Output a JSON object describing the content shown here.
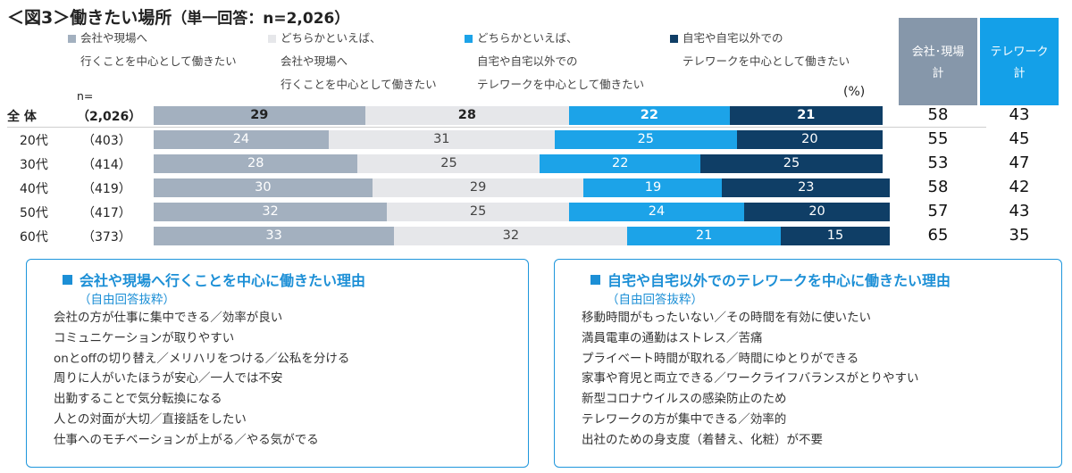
{
  "header": {
    "title": "＜図3＞働きたい場所",
    "subtitle": "（単一回答：n=2,026）"
  },
  "legend": [
    {
      "line1": "会社や現場へ",
      "line2": "行くことを中心として働きたい",
      "line3": "",
      "color": "#a3b0bf"
    },
    {
      "line1": "どちらかといえば、",
      "line2": "会社や現場へ",
      "line3": "行くことを中心として働きたい",
      "color": "#e6e7ea"
    },
    {
      "line1": "どちらかといえば、",
      "line2": "自宅や自宅以外での",
      "line3": "テレワークを中心として働きたい",
      "color": "#1ca3e8"
    },
    {
      "line1": "自宅や自宅以外での",
      "line2": "テレワークを中心として働きたい",
      "line3": "",
      "color": "#0f3e66"
    }
  ],
  "totals_header": [
    {
      "line1": "会社･現場",
      "line2": "計"
    },
    {
      "line1": "テレワーク",
      "line2": "計"
    }
  ],
  "n_label": "n=",
  "unit_label": "(%)",
  "chart_data": {
    "type": "bar",
    "stacked": true,
    "orientation": "horizontal",
    "categories": [
      "全 体",
      "20代",
      "30代",
      "40代",
      "50代",
      "60代"
    ],
    "sample_sizes": [
      "（2,026）",
      "（403）",
      "（414）",
      "（419）",
      "（417）",
      "（373）"
    ],
    "series": [
      {
        "name": "会社や現場へ行くことを中心として働きたい",
        "color": "#a3b0bf",
        "values": [
          29,
          24,
          28,
          30,
          32,
          33
        ]
      },
      {
        "name": "どちらかといえば、会社や現場へ行くことを中心として働きたい",
        "color": "#e6e7ea",
        "values": [
          28,
          31,
          25,
          29,
          25,
          32
        ]
      },
      {
        "name": "どちらかといえば、自宅や自宅以外でのテレワークを中心として働きたい",
        "color": "#1ca3e8",
        "values": [
          22,
          25,
          22,
          19,
          24,
          21
        ]
      },
      {
        "name": "自宅や自宅以外でのテレワークを中心として働きたい",
        "color": "#0f3e66",
        "values": [
          21,
          20,
          25,
          23,
          20,
          15
        ]
      }
    ],
    "totals": {
      "office": [
        58,
        55,
        53,
        58,
        57,
        65
      ],
      "telework": [
        43,
        45,
        47,
        42,
        43,
        35
      ]
    },
    "xlim": [
      0,
      100
    ],
    "unit": "%"
  },
  "reasons_office": {
    "title": "会社や現場へ行くことを中心に働きたい理由",
    "note": "（自由回答抜粋）",
    "items": [
      "会社の方が仕事に集中できる／効率が良い",
      "コミュニケーションが取りやすい",
      "onとoffの切り替え／メリハリをつける／公私を分ける",
      "周りに人がいたほうが安心／一人では不安",
      "出勤することで気分転換になる",
      "人との対面が大切／直接話をしたい",
      "仕事へのモチベーションが上がる／やる気がでる"
    ]
  },
  "reasons_telework": {
    "title": "自宅や自宅以外でのテレワークを中心に働きたい理由",
    "note": "（自由回答抜粋）",
    "items": [
      "移動時間がもったいない／その時間を有効に使いたい",
      "満員電車の通勤はストレス／苦痛",
      "プライベート時間が取れる／時間にゆとりができる",
      "家事や育児と両立できる／ワークライフバランスがとりやすい",
      "新型コロナウイルスの感染防止のため",
      "テレワークの方が集中できる／効率的",
      "出社のための身支度（着替え、化粧）が不要"
    ]
  }
}
